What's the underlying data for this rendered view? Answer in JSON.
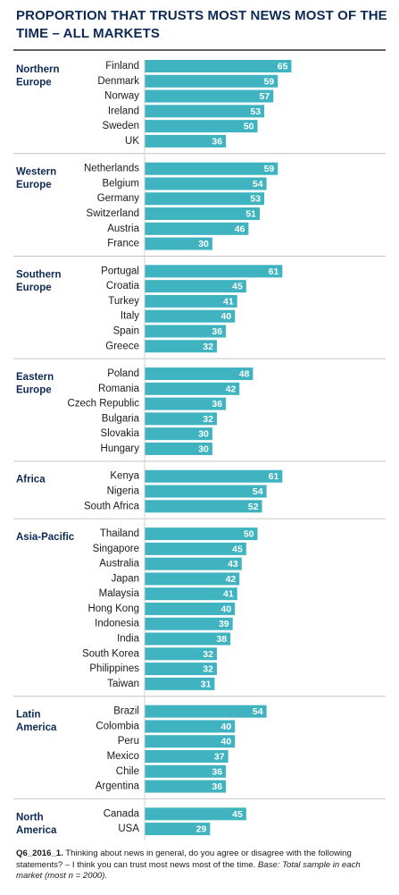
{
  "chart_data": {
    "type": "bar",
    "orientation": "horizontal",
    "title": "PROPORTION THAT TRUSTS MOST NEWS MOST OF THE TIME – ALL MARKETS",
    "xlim": [
      0,
      100
    ],
    "x_ticks": [
      "0%",
      "25%",
      "50%",
      "75%",
      "100%"
    ],
    "x_tick_values": [
      0,
      25,
      50,
      75,
      100
    ],
    "bar_color": "#3fb4c0",
    "label_color": "#ffffff",
    "groups": [
      {
        "name_lines": [
          "Northern",
          "Europe"
        ],
        "items": [
          {
            "label": "Finland",
            "value": 65
          },
          {
            "label": "Denmark",
            "value": 59
          },
          {
            "label": "Norway",
            "value": 57
          },
          {
            "label": "Ireland",
            "value": 53
          },
          {
            "label": "Sweden",
            "value": 50
          },
          {
            "label": "UK",
            "value": 36
          }
        ]
      },
      {
        "name_lines": [
          "Western",
          "Europe"
        ],
        "items": [
          {
            "label": "Netherlands",
            "value": 59
          },
          {
            "label": "Belgium",
            "value": 54
          },
          {
            "label": "Germany",
            "value": 53
          },
          {
            "label": "Switzerland",
            "value": 51
          },
          {
            "label": "Austria",
            "value": 46
          },
          {
            "label": "France",
            "value": 30
          }
        ]
      },
      {
        "name_lines": [
          "Southern",
          "Europe"
        ],
        "items": [
          {
            "label": "Portugal",
            "value": 61
          },
          {
            "label": "Croatia",
            "value": 45
          },
          {
            "label": "Turkey",
            "value": 41
          },
          {
            "label": "Italy",
            "value": 40
          },
          {
            "label": "Spain",
            "value": 36
          },
          {
            "label": "Greece",
            "value": 32
          }
        ]
      },
      {
        "name_lines": [
          "Eastern",
          "Europe"
        ],
        "items": [
          {
            "label": "Poland",
            "value": 48
          },
          {
            "label": "Romania",
            "value": 42
          },
          {
            "label": "Czech Republic",
            "value": 36
          },
          {
            "label": "Bulgaria",
            "value": 32
          },
          {
            "label": "Slovakia",
            "value": 30
          },
          {
            "label": "Hungary",
            "value": 30
          }
        ]
      },
      {
        "name_lines": [
          "Africa"
        ],
        "items": [
          {
            "label": "Kenya",
            "value": 61
          },
          {
            "label": "Nigeria",
            "value": 54
          },
          {
            "label": "South Africa",
            "value": 52
          }
        ]
      },
      {
        "name_lines": [
          "Asia-Pacific"
        ],
        "items": [
          {
            "label": "Thailand",
            "value": 50
          },
          {
            "label": "Singapore",
            "value": 45
          },
          {
            "label": "Australia",
            "value": 43
          },
          {
            "label": "Japan",
            "value": 42
          },
          {
            "label": "Malaysia",
            "value": 41
          },
          {
            "label": "Hong Kong",
            "value": 40
          },
          {
            "label": "Indonesia",
            "value": 39
          },
          {
            "label": "India",
            "value": 38
          },
          {
            "label": "South Korea",
            "value": 32
          },
          {
            "label": "Philippines",
            "value": 32
          },
          {
            "label": "Taiwan",
            "value": 31
          }
        ]
      },
      {
        "name_lines": [
          "Latin",
          "America"
        ],
        "items": [
          {
            "label": "Brazil",
            "value": 54
          },
          {
            "label": "Colombia",
            "value": 40
          },
          {
            "label": "Peru",
            "value": 40
          },
          {
            "label": "Mexico",
            "value": 37
          },
          {
            "label": "Chile",
            "value": 36
          },
          {
            "label": "Argentina",
            "value": 36
          }
        ]
      },
      {
        "name_lines": [
          "North",
          "America"
        ],
        "items": [
          {
            "label": "Canada",
            "value": 45
          },
          {
            "label": "USA",
            "value": 29
          }
        ]
      }
    ]
  },
  "footnote": {
    "code": "Q6_2016_1.",
    "text": " Thinking about news in general, do you agree or disagree with the following statements? – I think you can trust most news most of the time. ",
    "base": "Base: Total sample in each market (most n = 2000)."
  }
}
